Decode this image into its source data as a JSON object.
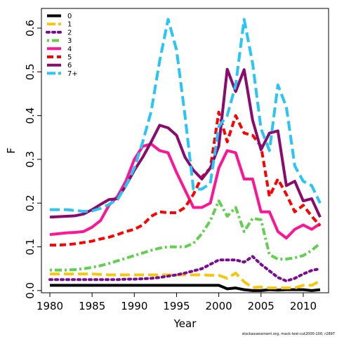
{
  "chart_data": {
    "type": "line",
    "xlabel": "Year",
    "ylabel": "F",
    "xlim": [
      1979,
      2013
    ],
    "ylim": [
      -0.005,
      0.645
    ],
    "xticks": [
      1980,
      1985,
      1990,
      1995,
      2000,
      2005,
      2010
    ],
    "yticks": [
      0.0,
      0.1,
      0.2,
      0.3,
      0.4,
      0.5,
      0.6
    ],
    "ytick_labels": [
      "0.0",
      "0.1",
      "0.2",
      "0.3",
      "0.4",
      "0.5",
      "0.6"
    ],
    "legend_position": "top-left",
    "footnote": "stockassessment.org, mack-test-cut2000-100, r2897",
    "x": [
      1980,
      1981,
      1982,
      1983,
      1984,
      1985,
      1986,
      1987,
      1988,
      1989,
      1990,
      1991,
      1992,
      1993,
      1994,
      1995,
      1996,
      1997,
      1998,
      1999,
      2000,
      2001,
      2002,
      2003,
      2004,
      2005,
      2006,
      2007,
      2008,
      2009,
      2010,
      2011,
      2012
    ],
    "series": [
      {
        "name": "0",
        "color": "#000000",
        "dash": "solid",
        "values": [
          0.012,
          0.012,
          0.012,
          0.012,
          0.012,
          0.012,
          0.012,
          0.012,
          0.012,
          0.012,
          0.012,
          0.012,
          0.012,
          0.012,
          0.012,
          0.012,
          0.012,
          0.012,
          0.012,
          0.012,
          0.012,
          0.004,
          0.006,
          0.002,
          0.0,
          0.0,
          0.002,
          0.001,
          0.002,
          0.002,
          0.002,
          0.0,
          0.002
        ]
      },
      {
        "name": "1",
        "color": "#f5c710",
        "dash": "longdash",
        "values": [
          0.038,
          0.038,
          0.038,
          0.038,
          0.038,
          0.038,
          0.037,
          0.036,
          0.036,
          0.036,
          0.036,
          0.036,
          0.036,
          0.036,
          0.036,
          0.036,
          0.036,
          0.036,
          0.036,
          0.035,
          0.035,
          0.028,
          0.04,
          0.02,
          0.007,
          0.008,
          0.006,
          0.006,
          0.006,
          0.006,
          0.012,
          0.012,
          0.022
        ]
      },
      {
        "name": "2",
        "color": "#7b0a94",
        "dash": "dotted",
        "values": [
          0.025,
          0.025,
          0.025,
          0.025,
          0.025,
          0.025,
          0.025,
          0.025,
          0.025,
          0.026,
          0.026,
          0.027,
          0.028,
          0.03,
          0.033,
          0.036,
          0.04,
          0.045,
          0.05,
          0.06,
          0.07,
          0.07,
          0.07,
          0.065,
          0.078,
          0.06,
          0.045,
          0.03,
          0.022,
          0.028,
          0.038,
          0.046,
          0.05
        ]
      },
      {
        "name": "3",
        "color": "#61d04f",
        "dash": "dotdash",
        "values": [
          0.047,
          0.047,
          0.047,
          0.048,
          0.05,
          0.053,
          0.057,
          0.062,
          0.068,
          0.074,
          0.08,
          0.086,
          0.092,
          0.097,
          0.1,
          0.1,
          0.1,
          0.108,
          0.13,
          0.16,
          0.205,
          0.17,
          0.19,
          0.135,
          0.165,
          0.162,
          0.082,
          0.072,
          0.072,
          0.075,
          0.08,
          0.092,
          0.108
        ]
      },
      {
        "name": "4",
        "color": "#ff1493",
        "dash": "solid",
        "values": [
          0.128,
          0.13,
          0.132,
          0.133,
          0.135,
          0.145,
          0.16,
          0.195,
          0.215,
          0.25,
          0.3,
          0.33,
          0.335,
          0.32,
          0.315,
          0.27,
          0.23,
          0.19,
          0.19,
          0.2,
          0.28,
          0.32,
          0.315,
          0.255,
          0.255,
          0.18,
          0.18,
          0.135,
          0.12,
          0.14,
          0.15,
          0.14,
          0.153
        ]
      },
      {
        "name": "5",
        "color": "#ff0000",
        "dash": "dashed",
        "values": [
          0.104,
          0.104,
          0.105,
          0.107,
          0.11,
          0.113,
          0.118,
          0.122,
          0.128,
          0.135,
          0.14,
          0.15,
          0.17,
          0.18,
          0.178,
          0.178,
          0.19,
          0.22,
          0.26,
          0.28,
          0.408,
          0.34,
          0.4,
          0.36,
          0.355,
          0.33,
          0.215,
          0.255,
          0.22,
          0.18,
          0.195,
          0.17,
          0.148
        ]
      },
      {
        "name": "6",
        "color": "#8b0a6e",
        "dash": "solid",
        "values": [
          0.168,
          0.169,
          0.17,
          0.171,
          0.175,
          0.185,
          0.197,
          0.208,
          0.21,
          0.24,
          0.275,
          0.305,
          0.34,
          0.378,
          0.372,
          0.355,
          0.305,
          0.275,
          0.255,
          0.28,
          0.33,
          0.506,
          0.455,
          0.505,
          0.39,
          0.322,
          0.36,
          0.365,
          0.24,
          0.25,
          0.205,
          0.21,
          0.168
        ]
      },
      {
        "name": "7+",
        "color": "#29c5f6",
        "dash": "longdash",
        "values": [
          0.185,
          0.185,
          0.185,
          0.183,
          0.181,
          0.182,
          0.188,
          0.197,
          0.208,
          0.24,
          0.28,
          0.34,
          0.41,
          0.525,
          0.62,
          0.55,
          0.4,
          0.232,
          0.232,
          0.245,
          0.375,
          0.4,
          0.47,
          0.62,
          0.52,
          0.37,
          0.32,
          0.47,
          0.42,
          0.285,
          0.25,
          0.24,
          0.2
        ]
      }
    ]
  }
}
